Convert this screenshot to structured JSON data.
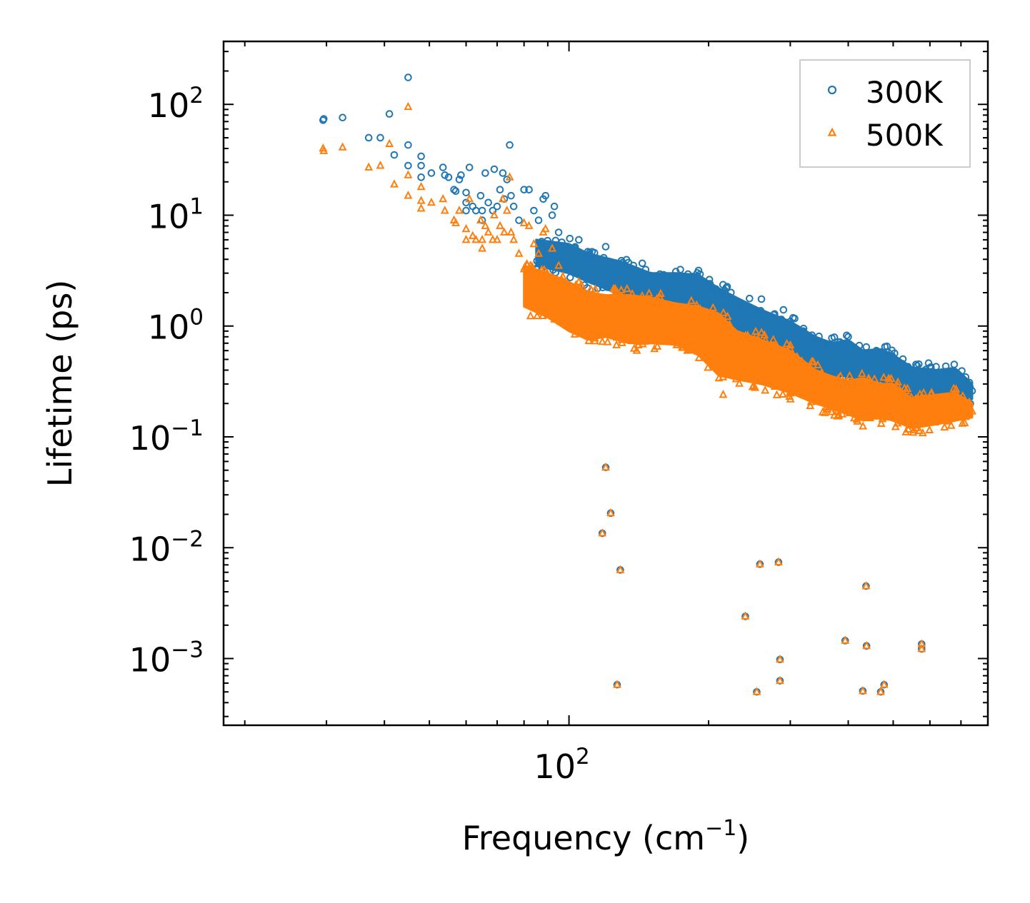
{
  "chart_data": {
    "type": "scatter",
    "title": "",
    "xlabel": "Frequency (cm",
    "xlabel_sup": "−1",
    "xlabel_close": ")",
    "ylabel": "Lifetime (ps)",
    "xscale": "log",
    "yscale": "log",
    "xlim": [
      18,
      800
    ],
    "ylim": [
      0.00025,
      370
    ],
    "x_tick_labels": [
      {
        "value": 100,
        "base": "10",
        "exp": "2"
      }
    ],
    "y_tick_labels": [
      {
        "value": 100,
        "base": "10",
        "exp": "2"
      },
      {
        "value": 10,
        "base": "10",
        "exp": "1"
      },
      {
        "value": 1,
        "base": "10",
        "exp": "0"
      },
      {
        "value": 0.1,
        "base": "10",
        "exp": "−1"
      },
      {
        "value": 0.01,
        "base": "10",
        "exp": "−2"
      },
      {
        "value": 0.001,
        "base": "10",
        "exp": "−3"
      }
    ],
    "legend": {
      "position": "top-right"
    },
    "series": [
      {
        "name": "300K",
        "color": "#1f77b4",
        "marker": "circle",
        "points": [
          [
            29.5,
            72
          ],
          [
            29.6,
            74
          ],
          [
            32.5,
            76
          ],
          [
            37,
            50
          ],
          [
            39.2,
            50
          ],
          [
            41,
            82
          ],
          [
            42,
            35
          ],
          [
            45,
            175
          ],
          [
            45,
            43
          ],
          [
            45,
            28
          ],
          [
            48,
            34
          ],
          [
            48,
            28
          ],
          [
            48,
            22
          ],
          [
            50.5,
            24
          ],
          [
            53.5,
            27
          ],
          [
            54,
            23
          ],
          [
            55,
            22
          ],
          [
            56.5,
            17
          ],
          [
            57,
            16.5
          ],
          [
            58,
            21
          ],
          [
            58.5,
            23
          ],
          [
            60,
            16
          ],
          [
            60,
            13
          ],
          [
            60,
            11
          ],
          [
            61,
            27
          ],
          [
            62,
            12
          ],
          [
            63,
            11
          ],
          [
            64.5,
            15
          ],
          [
            65,
            11
          ],
          [
            65,
            9
          ],
          [
            66,
            24
          ],
          [
            67,
            13
          ],
          [
            68.5,
            11
          ],
          [
            69,
            26
          ],
          [
            70,
            12
          ],
          [
            71,
            17
          ],
          [
            72,
            24
          ],
          [
            72.5,
            14
          ],
          [
            73.5,
            21
          ],
          [
            74.5,
            43
          ],
          [
            75,
            15
          ],
          [
            76,
            12
          ],
          [
            78,
            9
          ],
          [
            80,
            17
          ],
          [
            82,
            17
          ],
          [
            84,
            11
          ],
          [
            86,
            9
          ],
          [
            88,
            14
          ],
          [
            89,
            15
          ],
          [
            92,
            10
          ],
          [
            93,
            12
          ],
          [
            95,
            7
          ],
          [
            100,
            5
          ],
          [
            105,
            6
          ],
          [
            110,
            4
          ],
          [
            120,
            5.2
          ],
          [
            125,
            3.4
          ],
          [
            130,
            2.9
          ],
          [
            140,
            2.6
          ],
          [
            150,
            2.8
          ],
          [
            160,
            2.9
          ],
          [
            170,
            3.1
          ],
          [
            185,
            2.8
          ],
          [
            200,
            2.3
          ],
          [
            215,
            1.8
          ],
          [
            230,
            1.6
          ],
          [
            250,
            1.35
          ],
          [
            260,
            1.75
          ],
          [
            275,
            1.2
          ],
          [
            290,
            1.4
          ],
          [
            300,
            1.1
          ],
          [
            320,
            0.9
          ],
          [
            340,
            0.7
          ],
          [
            360,
            0.6
          ],
          [
            380,
            0.72
          ],
          [
            400,
            0.8
          ],
          [
            420,
            0.55
          ],
          [
            440,
            0.5
          ],
          [
            460,
            0.6
          ],
          [
            480,
            0.65
          ],
          [
            500,
            0.5
          ],
          [
            530,
            0.4
          ],
          [
            560,
            0.45
          ],
          [
            600,
            0.42
          ],
          [
            650,
            0.38
          ],
          [
            700,
            0.3
          ],
          [
            740,
            0.26
          ],
          [
            120,
            0.053
          ],
          [
            123,
            0.0205
          ],
          [
            118,
            0.0135
          ],
          [
            129,
            0.0063
          ],
          [
            127,
            0.00058
          ],
          [
            240,
            0.0024
          ],
          [
            258,
            0.0071
          ],
          [
            283,
            0.0074
          ],
          [
            254,
            0.0005
          ],
          [
            285,
            0.00098
          ],
          [
            285,
            0.00063
          ],
          [
            394,
            0.00145
          ],
          [
            437,
            0.0045
          ],
          [
            438,
            0.0013
          ],
          [
            430,
            0.00051
          ],
          [
            470,
            0.0005
          ],
          [
            478,
            0.00058
          ],
          [
            576,
            0.00135
          ],
          [
            576,
            0.00122
          ]
        ]
      },
      {
        "name": "500K",
        "color": "#ff7f0e",
        "marker": "triangle",
        "points": [
          [
            29.5,
            40
          ],
          [
            29.6,
            38
          ],
          [
            32.5,
            41
          ],
          [
            37,
            27
          ],
          [
            39.2,
            28
          ],
          [
            41,
            44
          ],
          [
            42,
            19
          ],
          [
            45,
            95
          ],
          [
            45,
            23
          ],
          [
            45,
            15
          ],
          [
            48,
            18
          ],
          [
            48,
            13.5
          ],
          [
            48,
            11.5
          ],
          [
            50.5,
            13
          ],
          [
            53.5,
            14
          ],
          [
            54,
            11
          ],
          [
            56.5,
            9
          ],
          [
            57,
            8.5
          ],
          [
            58,
            11
          ],
          [
            60,
            7.5
          ],
          [
            60,
            6
          ],
          [
            61,
            14
          ],
          [
            62,
            6.5
          ],
          [
            63,
            6
          ],
          [
            64.5,
            9
          ],
          [
            65,
            6
          ],
          [
            65,
            5
          ],
          [
            66,
            8
          ],
          [
            67,
            7
          ],
          [
            68.5,
            6
          ],
          [
            69,
            10
          ],
          [
            70,
            6
          ],
          [
            71,
            8
          ],
          [
            72,
            14
          ],
          [
            72.5,
            7
          ],
          [
            73.5,
            11
          ],
          [
            74.5,
            22
          ],
          [
            75,
            7
          ],
          [
            76,
            6
          ],
          [
            78,
            4.5
          ],
          [
            80,
            8.5
          ],
          [
            82,
            8
          ],
          [
            84,
            5.5
          ],
          [
            86,
            4.5
          ],
          [
            88,
            7
          ],
          [
            89,
            7.5
          ],
          [
            92,
            5
          ],
          [
            95,
            3.5
          ],
          [
            100,
            2.2
          ],
          [
            105,
            2.5
          ],
          [
            110,
            1.4
          ],
          [
            118,
            0.72
          ],
          [
            125,
            0.95
          ],
          [
            130,
            0.75
          ],
          [
            140,
            0.6
          ],
          [
            150,
            1.1
          ],
          [
            160,
            1.2
          ],
          [
            170,
            0.9
          ],
          [
            180,
            0.6
          ],
          [
            185,
            1.3
          ],
          [
            200,
            1.0
          ],
          [
            215,
            0.24
          ],
          [
            230,
            0.75
          ],
          [
            250,
            0.55
          ],
          [
            260,
            0.87
          ],
          [
            275,
            0.58
          ],
          [
            290,
            0.42
          ],
          [
            300,
            0.28
          ],
          [
            320,
            0.33
          ],
          [
            340,
            0.24
          ],
          [
            360,
            0.22
          ],
          [
            380,
            0.17
          ],
          [
            400,
            0.19
          ],
          [
            420,
            0.22
          ],
          [
            440,
            0.17
          ],
          [
            460,
            0.2
          ],
          [
            480,
            0.22
          ],
          [
            500,
            0.16
          ],
          [
            530,
            0.18
          ],
          [
            560,
            0.12
          ],
          [
            600,
            0.17
          ],
          [
            650,
            0.14
          ],
          [
            700,
            0.16
          ],
          [
            740,
            0.17
          ],
          [
            120,
            0.053
          ],
          [
            123,
            0.0205
          ],
          [
            118,
            0.0135
          ],
          [
            129,
            0.0063
          ],
          [
            127,
            0.00058
          ],
          [
            240,
            0.0024
          ],
          [
            258,
            0.0071
          ],
          [
            283,
            0.0074
          ],
          [
            254,
            0.0005
          ],
          [
            285,
            0.00098
          ],
          [
            285,
            0.00063
          ],
          [
            394,
            0.00145
          ],
          [
            437,
            0.0045
          ],
          [
            438,
            0.0013
          ],
          [
            430,
            0.00051
          ],
          [
            470,
            0.0005
          ],
          [
            478,
            0.00058
          ],
          [
            576,
            0.00135
          ],
          [
            576,
            0.00122
          ]
        ]
      }
    ],
    "bands": [
      {
        "series": "300K",
        "color": "#1f77b4",
        "upper": [
          [
            85,
            6
          ],
          [
            100,
            5.5
          ],
          [
            110,
            4.5
          ],
          [
            130,
            3.8
          ],
          [
            150,
            3.0
          ],
          [
            170,
            3.0
          ],
          [
            190,
            2.9
          ],
          [
            210,
            2.2
          ],
          [
            230,
            1.8
          ],
          [
            260,
            1.4
          ],
          [
            300,
            1.1
          ],
          [
            340,
            0.8
          ],
          [
            370,
            0.7
          ],
          [
            400,
            0.75
          ],
          [
            430,
            0.6
          ],
          [
            470,
            0.62
          ],
          [
            500,
            0.55
          ],
          [
            550,
            0.42
          ],
          [
            620,
            0.4
          ],
          [
            680,
            0.42
          ],
          [
            740,
            0.3
          ]
        ],
        "lower": [
          [
            85,
            3.5
          ],
          [
            100,
            3.0
          ],
          [
            110,
            2.5
          ],
          [
            130,
            1.9
          ],
          [
            150,
            1.7
          ],
          [
            170,
            1.6
          ],
          [
            190,
            1.4
          ],
          [
            210,
            0.9
          ],
          [
            230,
            0.75
          ],
          [
            260,
            0.65
          ],
          [
            300,
            0.55
          ],
          [
            340,
            0.4
          ],
          [
            370,
            0.36
          ],
          [
            400,
            0.35
          ],
          [
            430,
            0.3
          ],
          [
            470,
            0.32
          ],
          [
            500,
            0.28
          ],
          [
            550,
            0.22
          ],
          [
            620,
            0.24
          ],
          [
            680,
            0.23
          ],
          [
            740,
            0.22
          ]
        ]
      },
      {
        "series": "500K",
        "color": "#ff7f0e",
        "upper": [
          [
            80,
            3.5
          ],
          [
            90,
            3.0
          ],
          [
            100,
            2.5
          ],
          [
            110,
            2.0
          ],
          [
            120,
            1.9
          ],
          [
            135,
            1.9
          ],
          [
            150,
            1.8
          ],
          [
            170,
            1.6
          ],
          [
            190,
            1.5
          ],
          [
            210,
            1.3
          ],
          [
            230,
            0.9
          ],
          [
            260,
            0.75
          ],
          [
            300,
            0.6
          ],
          [
            340,
            0.4
          ],
          [
            370,
            0.35
          ],
          [
            400,
            0.32
          ],
          [
            430,
            0.34
          ],
          [
            470,
            0.3
          ],
          [
            500,
            0.3
          ],
          [
            550,
            0.22
          ],
          [
            620,
            0.24
          ],
          [
            680,
            0.25
          ],
          [
            740,
            0.2
          ]
        ],
        "lower": [
          [
            80,
            1.5
          ],
          [
            90,
            1.2
          ],
          [
            100,
            0.9
          ],
          [
            110,
            0.75
          ],
          [
            120,
            0.8
          ],
          [
            135,
            0.7
          ],
          [
            150,
            0.7
          ],
          [
            170,
            0.68
          ],
          [
            190,
            0.55
          ],
          [
            210,
            0.36
          ],
          [
            230,
            0.33
          ],
          [
            260,
            0.3
          ],
          [
            300,
            0.25
          ],
          [
            340,
            0.2
          ],
          [
            370,
            0.18
          ],
          [
            400,
            0.16
          ],
          [
            430,
            0.14
          ],
          [
            470,
            0.15
          ],
          [
            500,
            0.14
          ],
          [
            550,
            0.12
          ],
          [
            620,
            0.13
          ],
          [
            680,
            0.14
          ],
          [
            740,
            0.15
          ]
        ]
      }
    ]
  }
}
